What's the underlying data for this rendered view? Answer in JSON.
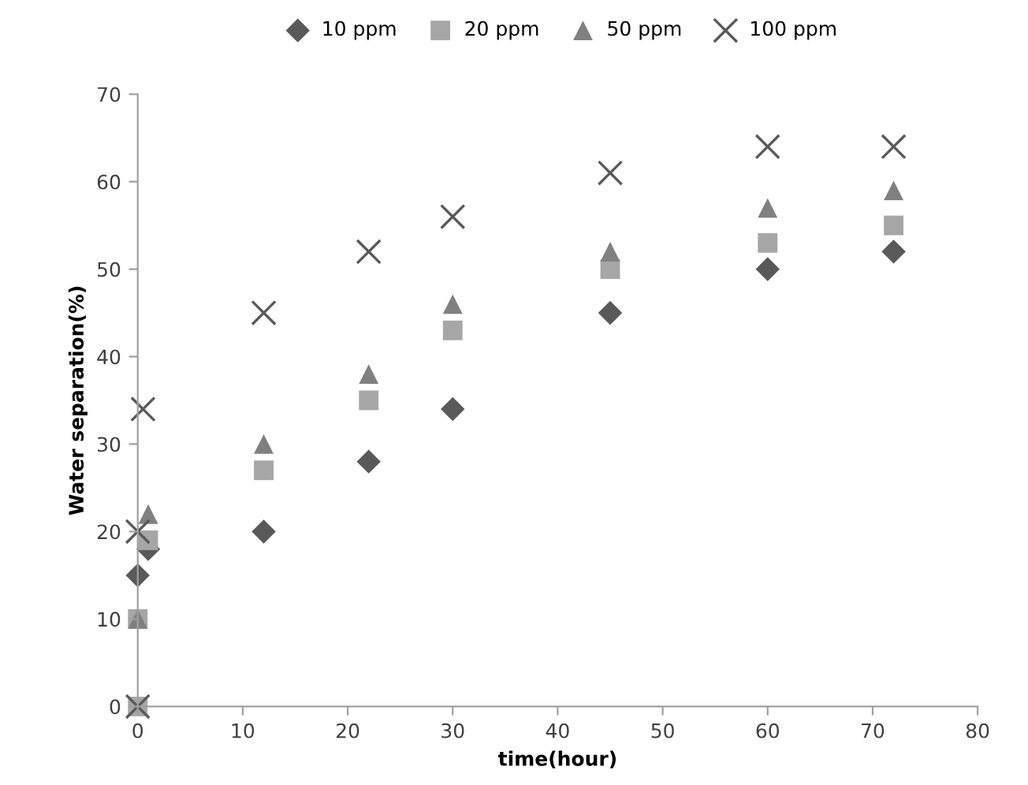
{
  "chart_data": {
    "type": "scatter",
    "xlabel": "time(hour)",
    "ylabel": "Water separation(%)",
    "xlim": [
      0,
      80
    ],
    "ylim": [
      0,
      70
    ],
    "xticks": [
      0,
      10,
      20,
      30,
      40,
      50,
      60,
      70,
      80
    ],
    "yticks": [
      0,
      10,
      20,
      30,
      40,
      50,
      60,
      70
    ],
    "grid": false,
    "legend": "top",
    "series": [
      {
        "name": "10 ppm",
        "color": "#595959",
        "marker": "diamond",
        "x": [
          0,
          1,
          12,
          22,
          30,
          45,
          60,
          72
        ],
        "values": [
          15,
          18,
          20,
          28,
          34,
          45,
          50,
          52
        ]
      },
      {
        "name": "20 ppm",
        "color": "#a6a6a6",
        "marker": "square",
        "x": [
          0,
          0,
          1,
          12,
          22,
          30,
          45,
          60,
          72
        ],
        "values": [
          0,
          10,
          19,
          27,
          35,
          43,
          50,
          53,
          55
        ]
      },
      {
        "name": "50 ppm",
        "color": "#808080",
        "marker": "triangle",
        "x": [
          0,
          1,
          12,
          22,
          30,
          45,
          60,
          72
        ],
        "values": [
          10,
          22,
          30,
          38,
          46,
          52,
          57,
          59
        ]
      },
      {
        "name": "100 ppm",
        "color": "#595959",
        "marker": "cross",
        "x": [
          0,
          0,
          0.5,
          12,
          22,
          30,
          45,
          60,
          72
        ],
        "values": [
          0,
          20,
          34,
          45,
          52,
          56,
          61,
          64,
          64
        ]
      }
    ]
  }
}
